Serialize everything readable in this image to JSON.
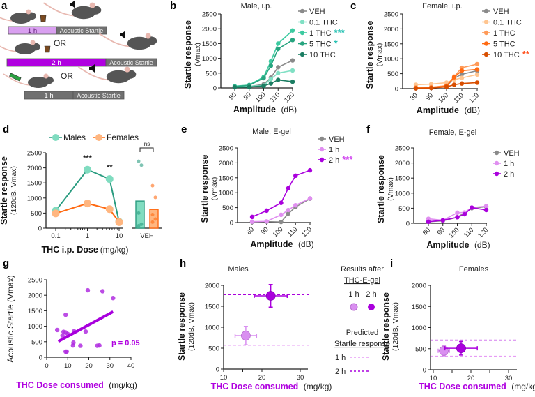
{
  "diagram": {
    "panel_label": "a",
    "rows": [
      {
        "left_label": "1 h",
        "left_color": "#d9a0f0",
        "right_label": "Acoustic Startle",
        "icon": "gel-cup-icon"
      },
      {
        "left_label": "2 h",
        "left_color": "#b000e0",
        "right_label": "Acoustic Startle",
        "icon": "gel-cup-icon"
      },
      {
        "left_label": "1 h",
        "left_color": "#707070",
        "right_label": "Acoustic Startle",
        "icon": "syringe-icon"
      }
    ],
    "or_label": "OR"
  },
  "chart_data": [
    {
      "panel_label": "b",
      "type": "line",
      "title": "Male, i.p.",
      "ylabel": "Startle response",
      "ylabel_sub": "(Vmax)",
      "xlabel": "Amplitude",
      "xunit": "(dB)",
      "x": [
        80,
        90,
        100,
        105,
        110,
        120
      ],
      "x_ticks": [
        80,
        90,
        100,
        110,
        120
      ],
      "y_ticks": [
        0,
        500,
        1000,
        1500,
        2000,
        2500
      ],
      "ylim": [
        0,
        2500
      ],
      "series": [
        {
          "name": "VEH",
          "color": "#8a8a8a",
          "values": [
            30,
            50,
            120,
            350,
            700,
            930
          ],
          "sig": ""
        },
        {
          "name": "0.1 THC",
          "color": "#80e0c4",
          "values": [
            40,
            60,
            80,
            300,
            500,
            590
          ],
          "sig": ""
        },
        {
          "name": "1 THC",
          "color": "#3ccaa0",
          "values": [
            60,
            100,
            370,
            900,
            1500,
            1940
          ],
          "sig": "***"
        },
        {
          "name": "5 THC",
          "color": "#27a47f",
          "values": [
            40,
            90,
            330,
            750,
            1320,
            1620
          ],
          "sig": "*"
        },
        {
          "name": "10 THC",
          "color": "#1b7d62",
          "values": [
            20,
            30,
            70,
            150,
            270,
            210
          ],
          "sig": ""
        }
      ],
      "sig_color": "#1fbfb0"
    },
    {
      "panel_label": "c",
      "type": "line",
      "title": "Female, i.p.",
      "ylabel": "Startle response",
      "ylabel_sub": "(Vmax)",
      "xlabel": "Amplitude",
      "xunit": "(dB)",
      "x": [
        80,
        90,
        100,
        105,
        110,
        120
      ],
      "x_ticks": [
        80,
        90,
        100,
        110,
        120
      ],
      "y_ticks": [
        0,
        500,
        1000,
        1500,
        2000,
        2500
      ],
      "ylim": [
        0,
        2500
      ],
      "series": [
        {
          "name": "VEH",
          "color": "#8a8a8a",
          "values": [
            20,
            40,
            80,
            350,
            480,
            600
          ],
          "sig": ""
        },
        {
          "name": "0.1 THC",
          "color": "#ffc590",
          "values": [
            130,
            150,
            200,
            300,
            360,
            470
          ],
          "sig": ""
        },
        {
          "name": "1 THC",
          "color": "#ff9a58",
          "values": [
            40,
            50,
            100,
            400,
            700,
            820
          ],
          "sig": ""
        },
        {
          "name": "5 THC",
          "color": "#ff6a12",
          "values": [
            20,
            30,
            90,
            380,
            600,
            640
          ],
          "sig": ""
        },
        {
          "name": "10 THC",
          "color": "#d84e00",
          "values": [
            10,
            20,
            60,
            130,
            170,
            200
          ],
          "sig": "**"
        }
      ],
      "sig_color": "#ff5522"
    },
    {
      "panel_label": "d",
      "type": "line",
      "x_scale": "log",
      "ylabel": "Startle response",
      "ylabel_sub": "(120dB, Vmax)",
      "xlabel": "THC i.p. Dose",
      "xunit": "(mg/kg)",
      "x": [
        0.1,
        1,
        5,
        10
      ],
      "x_ticks": [
        0.1,
        1,
        10
      ],
      "y_ticks": [
        0,
        500,
        1000,
        1500,
        2000,
        2500
      ],
      "ylim": [
        0,
        2500
      ],
      "series": [
        {
          "name": "Males",
          "color": "#2a9c80",
          "marker": "#80dcc0",
          "values": [
            580,
            1940,
            1630,
            210
          ]
        },
        {
          "name": "Females",
          "color": "#ff6a12",
          "marker": "#ffb680",
          "values": [
            490,
            820,
            630,
            200
          ]
        }
      ],
      "annotations": [
        {
          "x": 1,
          "text": "***"
        },
        {
          "x": 5,
          "text": "**"
        }
      ],
      "bars": {
        "category": "VEH",
        "values": [
          900,
          620
        ],
        "colors": [
          "#80dcc0",
          "#ffb680"
        ],
        "edges": [
          "#2a9c80",
          "#ff6a12"
        ],
        "points": [
          [
            2220,
            2090,
            500,
            130,
            80
          ],
          [
            1410,
            1020,
            450,
            300,
            200
          ]
        ],
        "comparison": "ns"
      }
    },
    {
      "panel_label": "e",
      "type": "line",
      "title": "Male, E-gel",
      "ylabel": "Startle response",
      "ylabel_sub": "(Vmax)",
      "xlabel": "Amplitude",
      "xunit": "(dB)",
      "x": [
        80,
        90,
        100,
        105,
        110,
        120
      ],
      "x_ticks": [
        80,
        90,
        100,
        110,
        120
      ],
      "y_ticks": [
        0,
        500,
        1000,
        1500,
        2000,
        2500
      ],
      "ylim": [
        0,
        2500
      ],
      "series": [
        {
          "name": "VEH",
          "color": "#8a8a8a",
          "values": [
            20,
            30,
            20,
            300,
            520,
            800
          ],
          "sig": ""
        },
        {
          "name": "1 h",
          "color": "#e08ff0",
          "values": [
            30,
            40,
            260,
            420,
            580,
            810
          ],
          "sig": ""
        },
        {
          "name": "2 h",
          "color": "#aa00dd",
          "values": [
            190,
            400,
            660,
            1150,
            1570,
            1750
          ],
          "sig": "***"
        }
      ],
      "sig_color": "#cc33ee"
    },
    {
      "panel_label": "f",
      "type": "line",
      "title": "Female, E-gel",
      "ylabel": "Startle response",
      "ylabel_sub": "(Vmax)",
      "xlabel": "Amplitude",
      "xunit": "(dB)",
      "x": [
        80,
        90,
        100,
        105,
        110,
        120
      ],
      "x_ticks": [
        80,
        90,
        100,
        110,
        120
      ],
      "y_ticks": [
        0,
        500,
        1000,
        1500,
        2000,
        2500
      ],
      "ylim": [
        0,
        2500
      ],
      "series": [
        {
          "name": "VEH",
          "color": "#8a8a8a",
          "values": [
            50,
            80,
            200,
            350,
            500,
            550
          ],
          "sig": ""
        },
        {
          "name": "1 h",
          "color": "#e08ff0",
          "values": [
            150,
            100,
            350,
            360,
            520,
            570
          ],
          "sig": ""
        },
        {
          "name": "2 h",
          "color": "#aa00dd",
          "values": [
            50,
            100,
            200,
            300,
            520,
            440
          ],
          "sig": ""
        }
      ]
    },
    {
      "panel_label": "g",
      "type": "scatter",
      "ylabel": "Acoustic Startle (Vmax)",
      "xlabel": "THC Dose consumed",
      "xunit": "(mg/kg)",
      "x_ticks": [
        0,
        10,
        20,
        30,
        40
      ],
      "y_ticks": [
        0,
        500,
        1000,
        1500,
        2000,
        2500
      ],
      "xlim": [
        0,
        40
      ],
      "ylim": [
        0,
        2500
      ],
      "color": "#b02ee0",
      "points": [
        [
          5,
          880
        ],
        [
          7.5,
          700
        ],
        [
          8,
          820
        ],
        [
          9,
          800
        ],
        [
          9,
          1370
        ],
        [
          9,
          180
        ],
        [
          9.5,
          180
        ],
        [
          10,
          750
        ],
        [
          12.5,
          380
        ],
        [
          12.7,
          470
        ],
        [
          13,
          840
        ],
        [
          16,
          370
        ],
        [
          18.5,
          830
        ],
        [
          19.5,
          2160
        ],
        [
          24,
          370
        ],
        [
          25,
          380
        ],
        [
          26.5,
          2130
        ],
        [
          31.5,
          1910
        ]
      ],
      "fit": [
        [
          5.5,
          510
        ],
        [
          31.5,
          1470
        ]
      ],
      "annotation": "p = 0.05"
    },
    {
      "panel_label": "h",
      "type": "scatter",
      "title": "Males",
      "ylabel": "Startle response",
      "ylabel_sub": "(120dB, Vmax)",
      "xlabel": "THC Dose consumed",
      "xunit": "(mg/kg)",
      "x_ticks": [
        10,
        20,
        30
      ],
      "y_ticks": [
        0,
        500,
        1000,
        1500,
        2000
      ],
      "xlim": [
        10,
        32
      ],
      "ylim": [
        0,
        2000
      ],
      "points": [
        {
          "name": "1 h",
          "x": 15.8,
          "y": 800,
          "xerr": 2.8,
          "yerr": 220,
          "color": "#d98ff0"
        },
        {
          "name": "2 h",
          "x": 22.3,
          "y": 1750,
          "xerr": 4.3,
          "yerr": 270,
          "color": "#aa00dd"
        }
      ],
      "predicted": [
        {
          "name": "1 h",
          "y": 570,
          "color": "#e79cf5"
        },
        {
          "name": "2 h",
          "y": 1780,
          "color": "#aa00dd"
        }
      ],
      "legend": {
        "results_line1": "Results after",
        "results_line2": "THC-E-gel",
        "h1": "1 h",
        "h2": "2 h",
        "predicted_line1": "Predicted",
        "predicted_line2": "Startle response"
      }
    },
    {
      "panel_label": "i",
      "type": "scatter",
      "title": "Females",
      "ylabel": "Startle response",
      "ylabel_sub": "(120dB, Vmax)",
      "xlabel": "THC Dose consumed",
      "xunit": "(mg/kg)",
      "x_ticks": [
        10,
        20,
        30
      ],
      "y_ticks": [
        0,
        500,
        1000,
        1500,
        2000
      ],
      "xlim": [
        10,
        32
      ],
      "ylim": [
        0,
        2000
      ],
      "points": [
        {
          "name": "1 h",
          "x": 12.8,
          "y": 450,
          "xerr": 1.5,
          "yerr": 120,
          "color": "#d98ff0"
        },
        {
          "name": "2 h",
          "x": 17.4,
          "y": 510,
          "xerr": 4.3,
          "yerr": 160,
          "color": "#aa00dd"
        }
      ],
      "predicted": [
        {
          "name": "1 h",
          "y": 320,
          "color": "#e79cf5"
        },
        {
          "name": "2 h",
          "y": 700,
          "color": "#aa00dd"
        }
      ]
    }
  ]
}
